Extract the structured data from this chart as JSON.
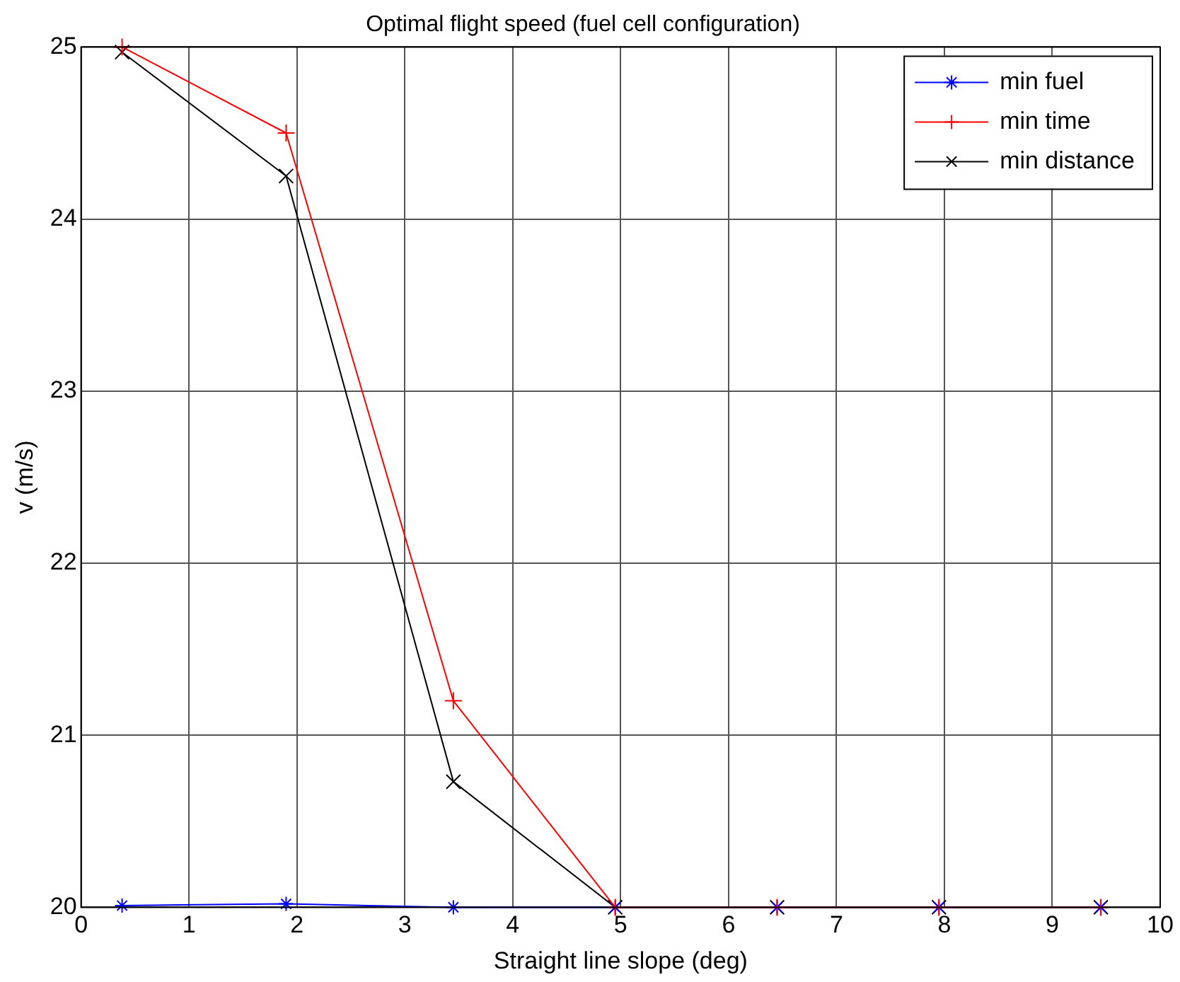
{
  "chart_data": {
    "type": "line",
    "title": "Optimal flight speed (fuel cell configuration)",
    "xlabel": "Straight line slope (deg)",
    "ylabel": "v (m/s)",
    "x": [
      0.38,
      1.9,
      3.45,
      4.95,
      6.45,
      7.95,
      9.45
    ],
    "series": [
      {
        "name": "min fuel",
        "color": "#0000ff",
        "marker": "cross",
        "values": [
          20.01,
          20.02,
          20,
          20,
          20,
          20,
          20
        ]
      },
      {
        "name": "min time",
        "color": "#ff0000",
        "marker": "cross",
        "values": [
          25,
          24.5,
          21.2,
          20,
          20,
          20,
          20
        ]
      },
      {
        "name": "min distance",
        "color": "#000000",
        "marker": "cross",
        "values": [
          24.97,
          24.25,
          20.73,
          20,
          20,
          20,
          20
        ]
      }
    ],
    "xlim": [
      0,
      10
    ],
    "xticks": [
      0,
      1,
      2,
      3,
      4,
      5,
      6,
      7,
      8,
      9,
      10
    ],
    "ylim": [
      20,
      25
    ],
    "yticks": [
      20,
      21,
      22,
      23,
      24,
      25
    ],
    "grid": true,
    "legend": "top right",
    "line_style": "solid"
  }
}
